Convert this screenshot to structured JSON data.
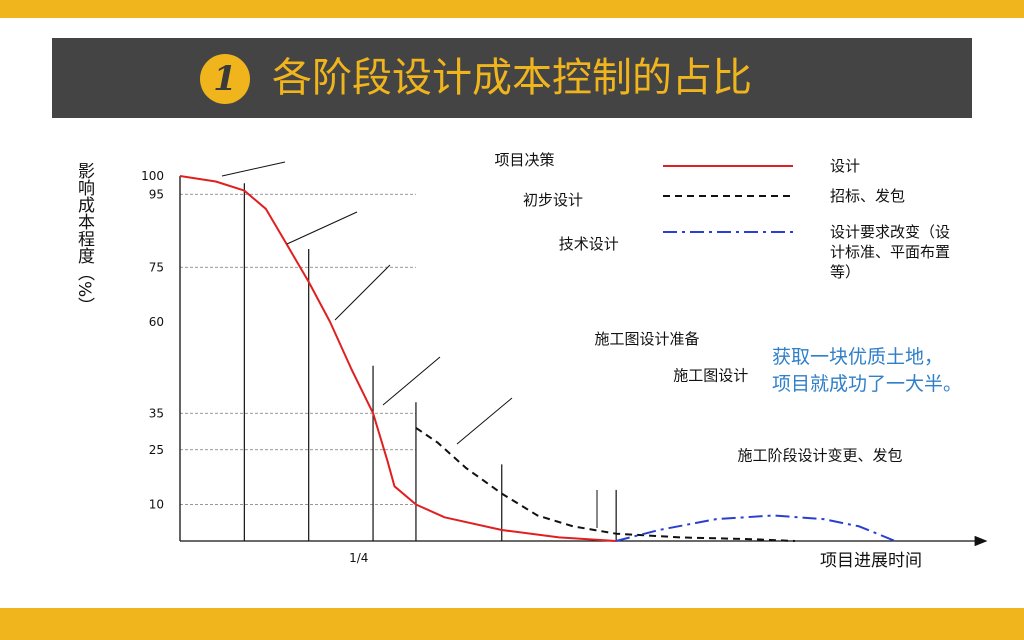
{
  "page": {
    "badge": "1",
    "title": "各阶段设计成本控制的占比",
    "note_lines": [
      "获取一块优质土地，",
      "项目就成功了一大半。"
    ],
    "colors": {
      "accent": "#f0b41c",
      "band": "#444444",
      "note": "#2f7fc9"
    }
  },
  "chart_data": {
    "type": "line",
    "title": "",
    "ylabel": "影响成本程度（%）",
    "xlabel": "项目进展时间",
    "ylim": [
      0,
      100
    ],
    "yticks": [
      100,
      95,
      75,
      60,
      35,
      25,
      10
    ],
    "dashed_gridlines": [
      95,
      75,
      35,
      25,
      10
    ],
    "xtick_labels": [
      {
        "x": 0.25,
        "label": "1/4"
      }
    ],
    "xlim": [
      0,
      1
    ],
    "legend": {
      "placement": "top-right",
      "entries": [
        {
          "label": "设计",
          "style": "solid",
          "color": "#e02020"
        },
        {
          "label": "招标、发包",
          "style": "dashed",
          "color": "#111111"
        },
        {
          "label_lines": [
            "设计要求改变（设",
            "计标准、平面布置",
            "等）"
          ],
          "style": "dashdot",
          "color": "#2a3fd1"
        }
      ]
    },
    "phase_markers": [
      {
        "x": 0.09,
        "top": 98
      },
      {
        "x": 0.18,
        "top": 80
      },
      {
        "x": 0.27,
        "top": 48
      },
      {
        "x": 0.33,
        "top": 38
      },
      {
        "x": 0.45,
        "top": 21
      },
      {
        "x": 0.61,
        "top": 14
      }
    ],
    "annotations": [
      {
        "label": "项目决策",
        "x": 0.23,
        "y": 103
      },
      {
        "label": "初步设计",
        "x": 0.27,
        "y": 92
      },
      {
        "label": "技术设计",
        "x": 0.32,
        "y": 80
      },
      {
        "label": "施工图设计准备",
        "x": 0.37,
        "y": 54
      },
      {
        "label": "施工图设计",
        "x": 0.48,
        "y": 44
      },
      {
        "label": "施工阶段设计变更、发包",
        "x": 0.57,
        "y": 22
      }
    ],
    "series": [
      {
        "name": "设计",
        "style": "solid",
        "color": "#e02020",
        "points": [
          [
            0,
            100
          ],
          [
            0.05,
            98.5
          ],
          [
            0.09,
            96
          ],
          [
            0.12,
            91
          ],
          [
            0.15,
            81
          ],
          [
            0.18,
            71
          ],
          [
            0.21,
            60
          ],
          [
            0.24,
            47
          ],
          [
            0.27,
            35
          ],
          [
            0.29,
            22
          ],
          [
            0.3,
            15
          ],
          [
            0.33,
            10
          ],
          [
            0.37,
            6.5
          ],
          [
            0.45,
            3
          ],
          [
            0.53,
            1
          ],
          [
            0.61,
            0
          ]
        ]
      },
      {
        "name": "招标、发包",
        "style": "dashed",
        "color": "#111111",
        "points": [
          [
            0.33,
            31
          ],
          [
            0.36,
            27
          ],
          [
            0.4,
            20
          ],
          [
            0.45,
            13
          ],
          [
            0.5,
            7
          ],
          [
            0.55,
            4
          ],
          [
            0.61,
            2
          ],
          [
            0.7,
            1
          ],
          [
            0.8,
            0.5
          ],
          [
            0.86,
            0
          ]
        ]
      },
      {
        "name": "设计要求改变",
        "style": "dashdot",
        "color": "#2a3fd1",
        "points": [
          [
            0.61,
            0
          ],
          [
            0.67,
            3
          ],
          [
            0.75,
            6
          ],
          [
            0.83,
            7
          ],
          [
            0.9,
            6
          ],
          [
            0.95,
            4
          ],
          [
            1.0,
            0
          ]
        ]
      }
    ]
  }
}
